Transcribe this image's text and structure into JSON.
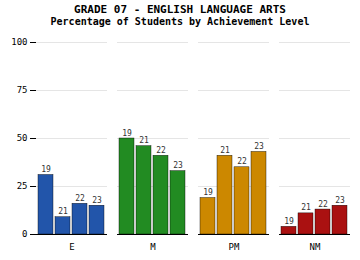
{
  "chart_data": {
    "type": "bar",
    "title": "GRADE 07 - ENGLISH LANGUAGE ARTS",
    "subtitle": "Percentage of Students by Achievement Level",
    "categories": [
      "E",
      "M",
      "PM",
      "NM"
    ],
    "series": [
      {
        "name": "19",
        "values": [
          31,
          50,
          19,
          4
        ]
      },
      {
        "name": "21",
        "values": [
          9,
          46,
          41,
          11
        ]
      },
      {
        "name": "22",
        "values": [
          16,
          41,
          35,
          13
        ]
      },
      {
        "name": "23",
        "values": [
          15,
          33,
          43,
          15
        ]
      }
    ],
    "colors": [
      "#2255aa",
      "#228b22",
      "#cc8800",
      "#aa1111"
    ],
    "ylim": [
      0,
      100
    ],
    "yticks": [
      0,
      25,
      50,
      75,
      100
    ],
    "grid": true
  }
}
